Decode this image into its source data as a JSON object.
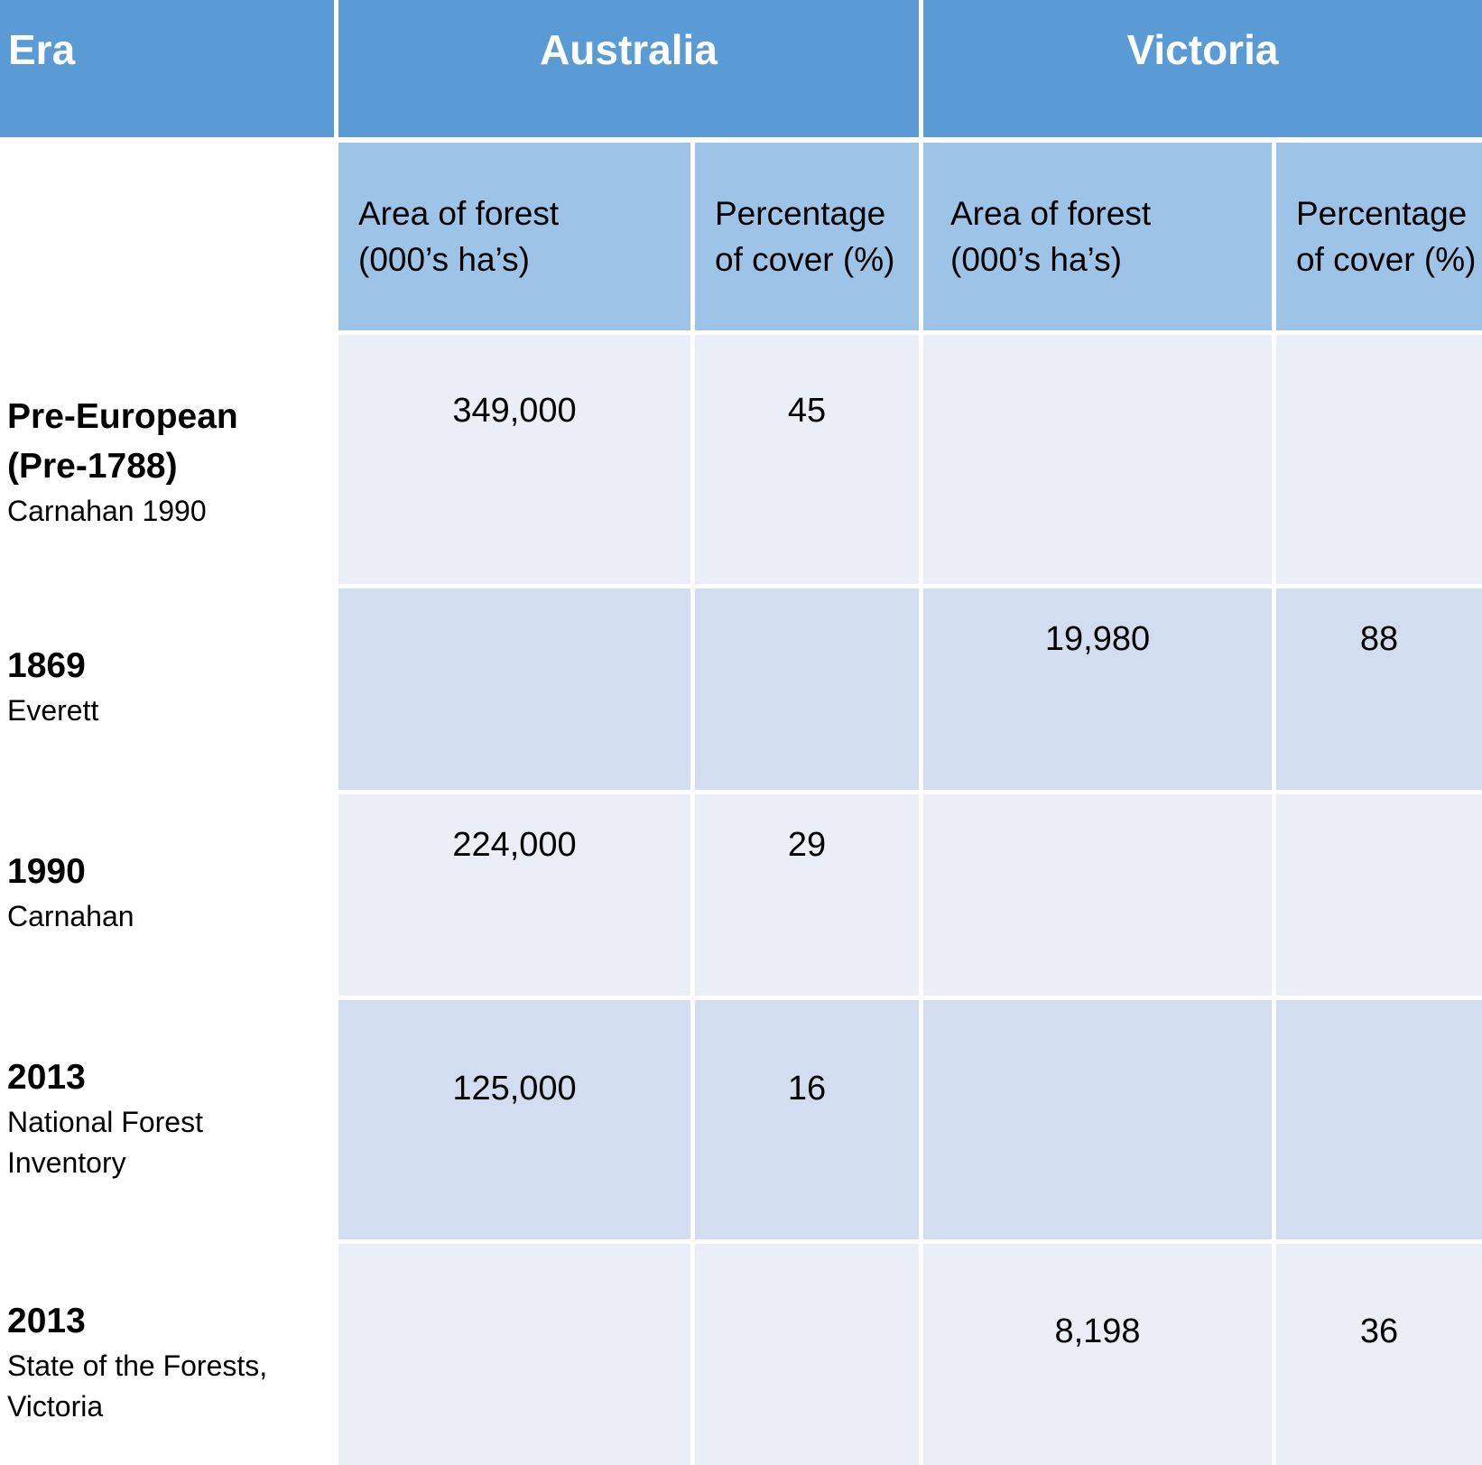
{
  "chart_data": {
    "type": "table",
    "title": "",
    "header": {
      "era": "Era",
      "groups": [
        "Australia",
        "Victoria"
      ],
      "subcolumns": [
        "Area of forest (000’s ha’s)",
        "Percentage of cover (%)",
        "Area of forest (000’s ha’s)",
        "Percentage of cover (%)"
      ]
    },
    "rows": [
      {
        "era": "Pre-European (Pre-1788)",
        "source": "Carnahan 1990",
        "values": [
          "349,000",
          "45",
          "",
          ""
        ]
      },
      {
        "era": "1869",
        "source": "Everett",
        "values": [
          "",
          "",
          "19,980",
          "88"
        ]
      },
      {
        "era": "1990",
        "source": "Carnahan",
        "values": [
          "224,000",
          "29",
          "",
          ""
        ]
      },
      {
        "era": "2013",
        "source": "National Forest Inventory",
        "values": [
          "125,000",
          "16",
          "",
          ""
        ]
      },
      {
        "era": "2013",
        "source": "State of the Forests, Victoria",
        "values": [
          "",
          "",
          "8,198",
          "36"
        ]
      }
    ]
  }
}
